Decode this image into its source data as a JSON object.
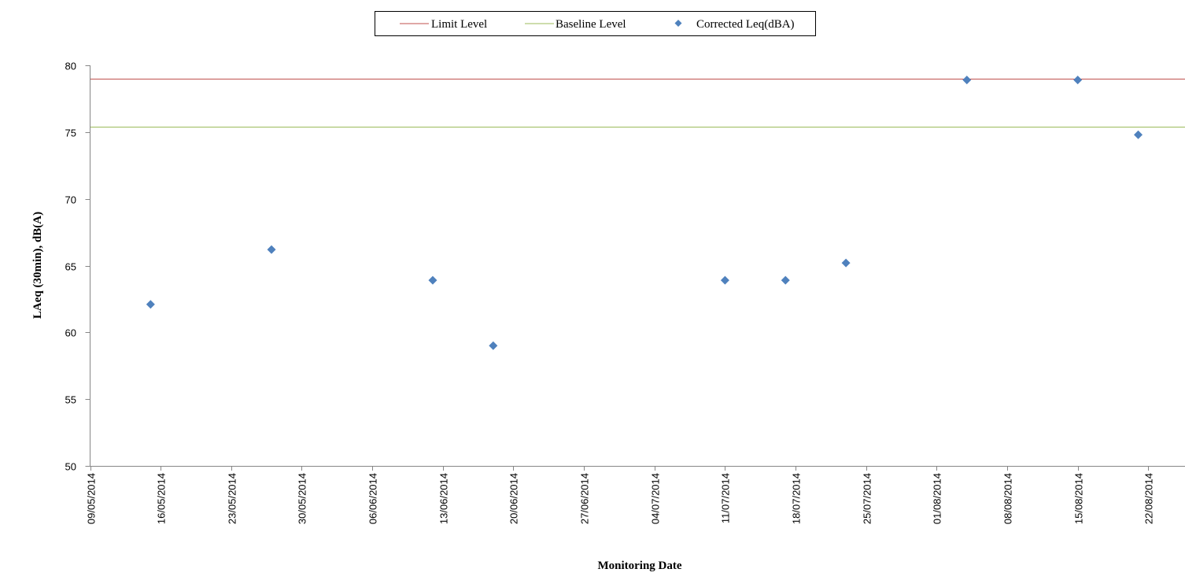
{
  "chart_data": {
    "type": "scatter",
    "title": "",
    "xlabel": "Monitoring Date",
    "ylabel": "LAeq (30min), dB(A)",
    "ylim": [
      50,
      80
    ],
    "xlim": [
      "09/05/2014",
      "29/08/2014"
    ],
    "yticks": [
      50,
      55,
      60,
      65,
      70,
      75,
      80
    ],
    "xticks": [
      "09/05/2014",
      "16/05/2014",
      "23/05/2014",
      "30/05/2014",
      "06/06/2014",
      "13/06/2014",
      "20/06/2014",
      "27/06/2014",
      "04/07/2014",
      "11/07/2014",
      "18/07/2014",
      "25/07/2014",
      "01/08/2014",
      "08/08/2014",
      "15/08/2014",
      "22/08/2014"
    ],
    "grid": false,
    "legend_position": "top",
    "series": [
      {
        "name": "Limit Level",
        "kind": "line",
        "color": "#c0504d",
        "value": 79
      },
      {
        "name": "Baseline Level",
        "kind": "line",
        "color": "#9bbb59",
        "value": 75.4
      },
      {
        "name": "Corrected Leq(dBA)",
        "kind": "scatter",
        "marker": "diamond",
        "color": "#4f81bd",
        "points": [
          {
            "x": "15/05/2014",
            "y": 62.1
          },
          {
            "x": "27/05/2014",
            "y": 66.2
          },
          {
            "x": "12/06/2014",
            "y": 63.9
          },
          {
            "x": "18/06/2014",
            "y": 59.0
          },
          {
            "x": "11/07/2014",
            "y": 63.9
          },
          {
            "x": "17/07/2014",
            "y": 63.9
          },
          {
            "x": "23/07/2014",
            "y": 65.2
          },
          {
            "x": "04/08/2014",
            "y": 78.9
          },
          {
            "x": "15/08/2014",
            "y": 78.9
          },
          {
            "x": "21/08/2014",
            "y": 74.8
          }
        ]
      }
    ]
  }
}
